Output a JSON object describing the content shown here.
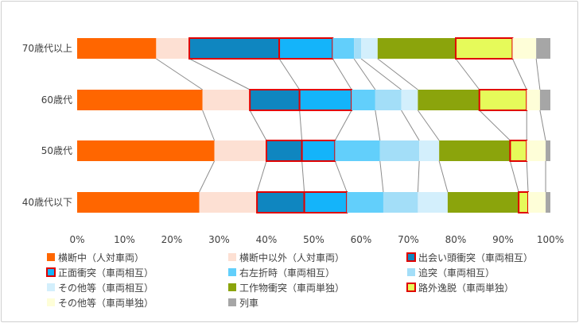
{
  "chart_data": {
    "type": "bar",
    "orientation": "horizontal",
    "stacked": "percent",
    "categories": [
      "70歳代以上",
      "60歳代",
      "50歳代",
      "40歳代以下"
    ],
    "xlim": [
      0,
      100
    ],
    "x_ticks": [
      "0%",
      "10%",
      "20%",
      "30%",
      "40%",
      "50%",
      "60%",
      "70%",
      "80%",
      "90%",
      "100%"
    ],
    "grid": false,
    "legend_position": "bottom",
    "series": [
      {
        "name": "横断中（人対車両）",
        "color": "#ff6600",
        "highlight": false,
        "values": [
          16.7,
          26.5,
          29.0,
          25.8
        ]
      },
      {
        "name": "横断中以外（人対車両）",
        "color": "#fde0d3",
        "highlight": false,
        "values": [
          7.0,
          10.0,
          11.0,
          12.2
        ]
      },
      {
        "name": "出会い頭衝突（車両相互）",
        "color": "#0f86c0",
        "highlight": true,
        "values": [
          19.0,
          10.5,
          7.5,
          10.0
        ]
      },
      {
        "name": "正面衝突（車両相互）",
        "color": "#14b4fa",
        "highlight": true,
        "values": [
          11.3,
          11.0,
          7.0,
          9.0
        ]
      },
      {
        "name": "右左折時（車両相互）",
        "color": "#62cffb",
        "highlight": false,
        "values": [
          4.5,
          5.0,
          9.5,
          7.7
        ]
      },
      {
        "name": "追突（車両相互）",
        "color": "#a3def8",
        "highlight": false,
        "values": [
          1.5,
          5.5,
          8.3,
          7.3
        ]
      },
      {
        "name": "その他等（車両相互）",
        "color": "#d3effc",
        "highlight": false,
        "values": [
          3.5,
          3.5,
          4.2,
          6.3
        ]
      },
      {
        "name": "工作物衝突（車両単独）",
        "color": "#8ba40c",
        "highlight": false,
        "values": [
          16.5,
          13.0,
          15.0,
          15.0
        ]
      },
      {
        "name": "路外逸脱（車両単独）",
        "color": "#e6fa5a",
        "highlight": true,
        "values": [
          12.0,
          10.0,
          3.5,
          2.0
        ]
      },
      {
        "name": "その他等（車両単独）",
        "color": "#fefed8",
        "highlight": false,
        "values": [
          5.0,
          2.8,
          4.0,
          3.7
        ]
      },
      {
        "name": "列車",
        "color": "#a6a6a6",
        "highlight": false,
        "values": [
          3.0,
          2.2,
          1.0,
          1.0
        ]
      }
    ],
    "highlight_border_color": "#e00000",
    "connector_color": "#8c8c8c"
  }
}
